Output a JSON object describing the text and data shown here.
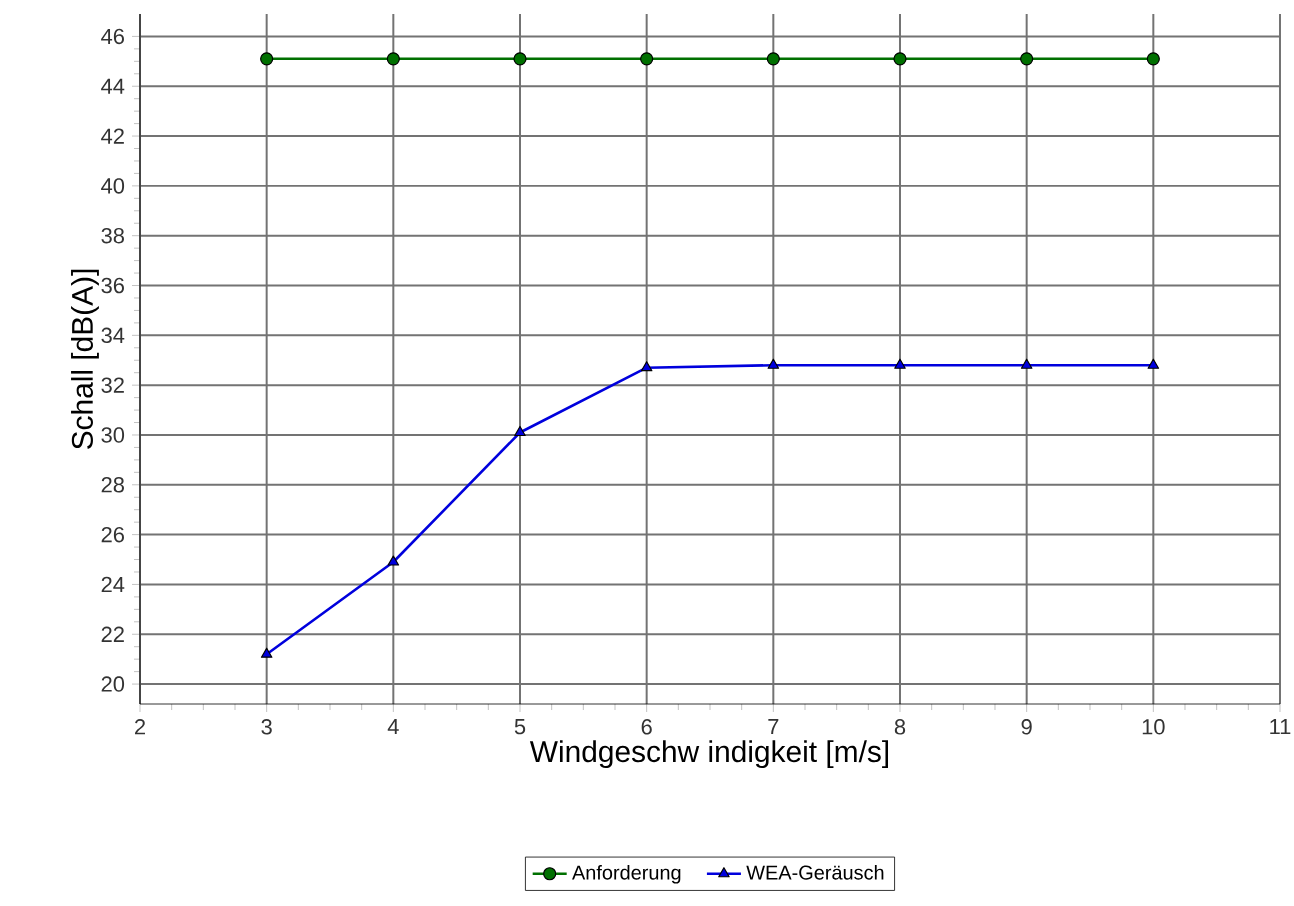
{
  "chart_data": {
    "type": "line",
    "xlabel": "Windgeschw indigkeit [m/s]",
    "ylabel": "Schall [dB(A)]",
    "x": [
      3,
      4,
      5,
      6,
      7,
      8,
      9,
      10
    ],
    "series": [
      {
        "name": "Anforderung",
        "color": "#007000",
        "marker": "circle",
        "values": [
          45.1,
          45.1,
          45.1,
          45.1,
          45.1,
          45.1,
          45.1,
          45.1
        ]
      },
      {
        "name": "WEA-Geräusch",
        "color": "#0000dd",
        "marker": "triangle",
        "values": [
          21.2,
          24.9,
          30.1,
          32.7,
          32.8,
          32.8,
          32.8,
          32.8
        ]
      }
    ],
    "xlim": [
      2,
      11
    ],
    "xticks": [
      2,
      3,
      4,
      5,
      6,
      7,
      8,
      9,
      10,
      11
    ],
    "ylim": [
      19.2,
      46.9
    ],
    "yticks": [
      20,
      22,
      24,
      26,
      28,
      30,
      32,
      34,
      36,
      38,
      40,
      42,
      44,
      46
    ],
    "grid": true,
    "legend": "bottom",
    "line_style": "solid"
  }
}
